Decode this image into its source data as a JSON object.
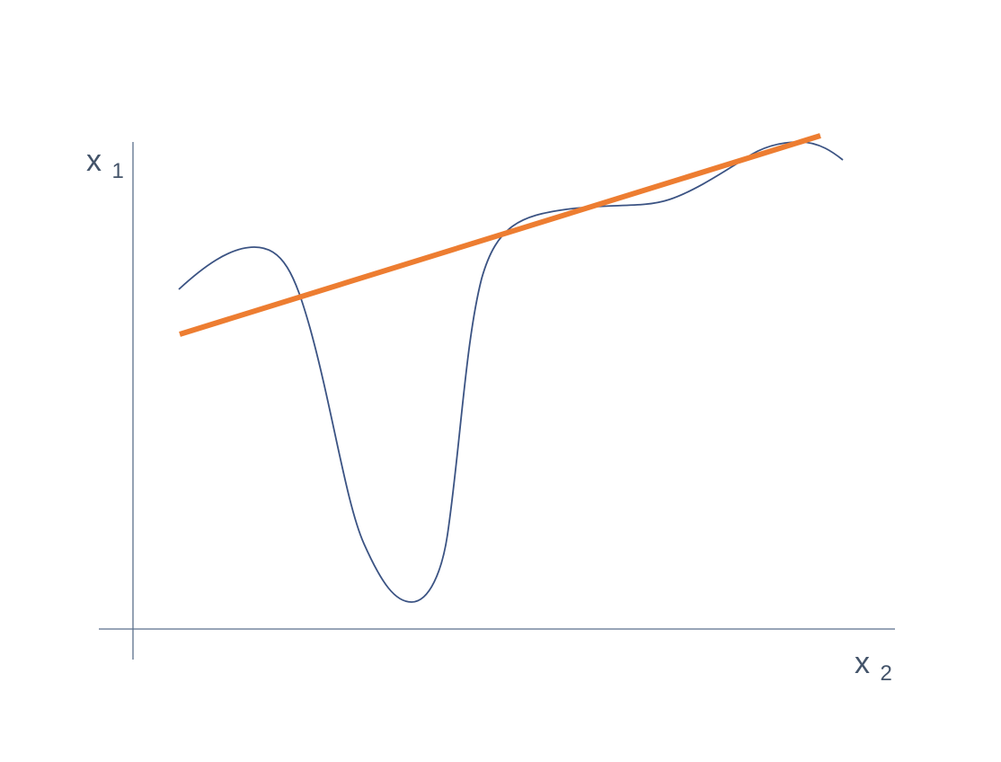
{
  "figure": {
    "y_axis": {
      "label": "x",
      "subscript": "1"
    },
    "x_axis": {
      "label": "x",
      "subscript": "2"
    }
  },
  "colors": {
    "axis": "#5a6f8c",
    "curve": "#3b5383",
    "fit_line": "#ed7d31",
    "label": "#44546a"
  },
  "icons": {
    "curve": "wavy-curve",
    "fit_line": "straight-line"
  }
}
